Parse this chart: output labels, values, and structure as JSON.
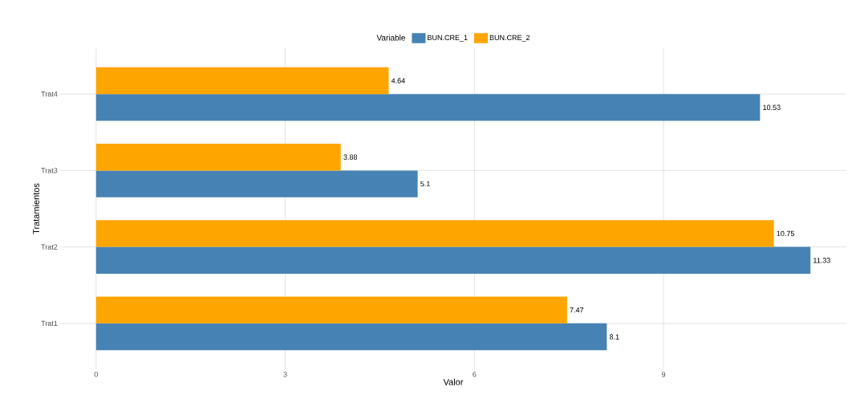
{
  "chart_data": {
    "type": "bar",
    "orientation": "horizontal",
    "xlabel": "Valor",
    "ylabel": "Tratamientos",
    "legend_title": "Variable",
    "categories": [
      "Trat4",
      "Trat3",
      "Trat2",
      "Trat1"
    ],
    "series": [
      {
        "name": "BUN.CRE_1",
        "color": "#4682b4",
        "values": [
          10.53,
          5.1,
          11.33,
          8.1
        ]
      },
      {
        "name": "BUN.CRE_2",
        "color": "#ffa500",
        "values": [
          4.64,
          3.88,
          10.75,
          7.47
        ]
      }
    ],
    "xlim": [
      -0.57,
      11.9
    ],
    "xticks": [
      0,
      3,
      6,
      9
    ],
    "grid": true,
    "legend": "top",
    "data_labels": true
  }
}
